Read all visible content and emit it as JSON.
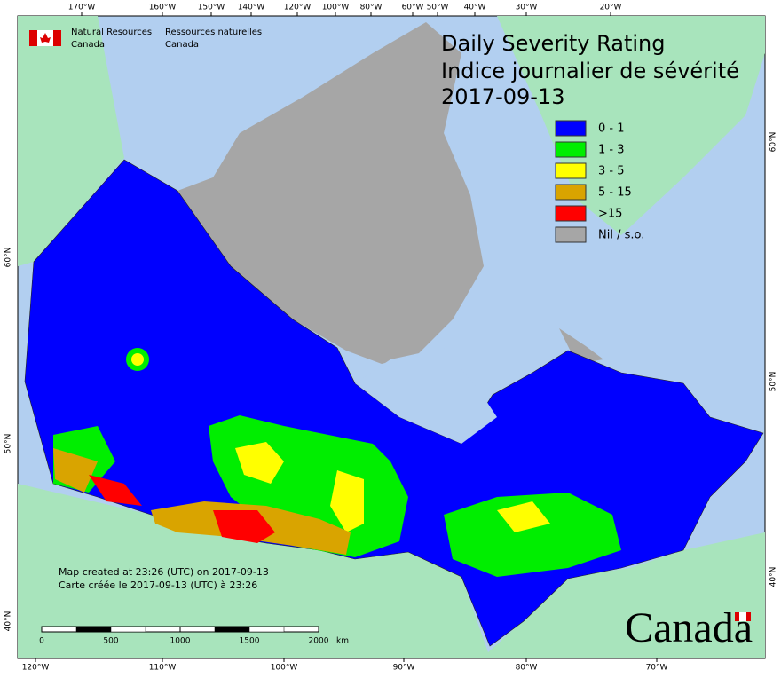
{
  "header": {
    "org_en": [
      "Natural Resources",
      "Canada"
    ],
    "org_fr": [
      "Ressources naturelles",
      "Canada"
    ]
  },
  "title": {
    "line1": "Daily Severity Rating",
    "line2": "Indice journalier de sévérité",
    "date": "2017-09-13"
  },
  "legend": [
    {
      "label": "0 - 1",
      "color": "#0000ff"
    },
    {
      "label": "1 - 3",
      "color": "#00ee00"
    },
    {
      "label": "3 - 5",
      "color": "#ffff00"
    },
    {
      "label": "5 - 15",
      "color": "#d9a400"
    },
    {
      "label": ">15",
      "color": "#ff0000"
    },
    {
      "label": "Nil / s.o.",
      "color": "#a6a6a6"
    }
  ],
  "graticule": {
    "top": [
      "170°W",
      "160°W",
      "150°W",
      "140°W",
      "120°W",
      "100°W",
      "80°W",
      "60°W",
      "50°W",
      "40°W",
      "30°W",
      "20°W"
    ],
    "bottom": [
      "120°W",
      "110°W",
      "100°W",
      "90°W",
      "80°W",
      "70°W"
    ],
    "left": [
      "60°N",
      "50°N",
      "40°N"
    ],
    "right": [
      "60°N",
      "50°N",
      "40°N"
    ]
  },
  "footer": {
    "created_en": "Map created at 23:26 (UTC) on 2017-09-13",
    "created_fr": "Carte créée le 2017-09-13 (UTC) à 23:26"
  },
  "scale_bar": {
    "labels": [
      "0",
      "500",
      "1000",
      "1500",
      "2000"
    ],
    "unit": "km"
  },
  "wordmark": "Canada"
}
